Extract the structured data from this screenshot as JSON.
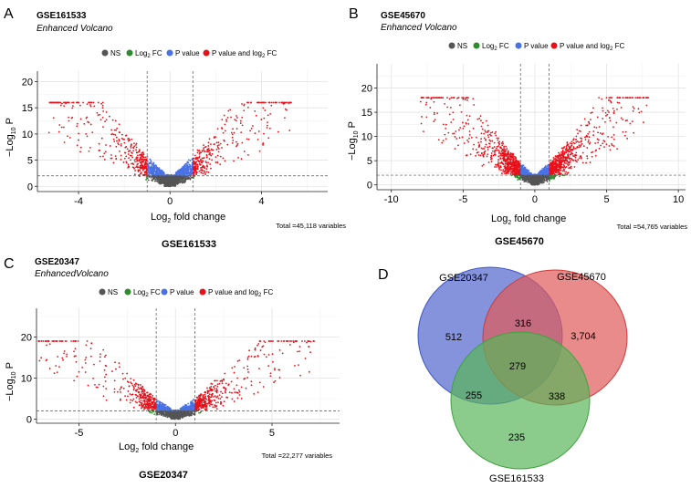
{
  "figure": {
    "colors": {
      "NS": "#555555",
      "log2fc": "#2e8b2e",
      "pvalue": "#4a72e6",
      "both": "#e8111a",
      "venn_blue": "#5b6fcf",
      "venn_red": "#e05a5a",
      "venn_green": "#5ab55a"
    }
  },
  "chart_data": [
    {
      "panel": "A",
      "type": "scatter",
      "subtype": "volcano",
      "title": "GSE161533",
      "subtitle": "Enhanced Volcano",
      "xlabel": "Log2 fold change",
      "ylabel": "−Log10 P",
      "xlim": [
        -5.8,
        6.9
      ],
      "ylim": [
        -1,
        22
      ],
      "xticks": [
        -4,
        0,
        4
      ],
      "yticks": [
        0,
        5,
        10,
        15,
        20
      ],
      "fc_cutoff": 1,
      "p_cutoff_log10": 2,
      "legend": [
        "NS",
        "Log2 FC",
        "P value",
        "P value and log2 FC"
      ],
      "caption": "Total =45,118 variables",
      "footer_label": "GSE161533",
      "x_spread": 1.3,
      "y_max": 16,
      "outer_x_max": 5.3,
      "n_points": 2200
    },
    {
      "panel": "B",
      "type": "scatter",
      "subtype": "volcano",
      "title": "GSE45670",
      "subtitle": "Enhanced Volcano",
      "xlabel": "Log2 fold change",
      "ylabel": "−Log10 P",
      "xlim": [
        -11,
        10.5
      ],
      "ylim": [
        -1,
        25
      ],
      "xticks": [
        -10,
        -5,
        0,
        5,
        10
      ],
      "yticks": [
        0,
        5,
        10,
        15,
        20
      ],
      "fc_cutoff": 1,
      "p_cutoff_log10": 2,
      "legend": [
        "NS",
        "Log2 FC",
        "P value",
        "P value and log2 FC"
      ],
      "caption": "Total =54,765 variables",
      "footer_label": "GSE45670",
      "x_spread": 2.4,
      "y_max": 18,
      "outer_x_max": 8,
      "n_points": 2600
    },
    {
      "panel": "C",
      "type": "scatter",
      "subtype": "volcano",
      "title": "GSE20347",
      "subtitle": "EnhancedVolcano",
      "xlabel": "Log2 fold change",
      "ylabel": "−Log10 P",
      "xlim": [
        -7.2,
        8.5
      ],
      "ylim": [
        -1,
        27
      ],
      "xticks": [
        -5,
        0,
        5
      ],
      "yticks": [
        0,
        10,
        20
      ],
      "fc_cutoff": 1,
      "p_cutoff_log10": 2,
      "legend": [
        "NS",
        "Log2 FC",
        "P value",
        "P value and log2 FC"
      ],
      "caption": "Total =22,277 variables",
      "footer_label": "GSE20347",
      "x_spread": 1.8,
      "y_max": 19,
      "outer_x_max": 7.2,
      "n_points": 1900
    },
    {
      "panel": "D",
      "type": "venn",
      "sets": [
        "GSE20347",
        "GSE45670",
        "GSE161533"
      ],
      "regions": {
        "GSE20347_only": 512,
        "GSE45670_only": "3,704",
        "GSE161533_only": 235,
        "GSE20347_GSE45670": 316,
        "GSE20347_GSE161533": 255,
        "GSE45670_GSE161533": 338,
        "all_three": 279
      }
    }
  ]
}
